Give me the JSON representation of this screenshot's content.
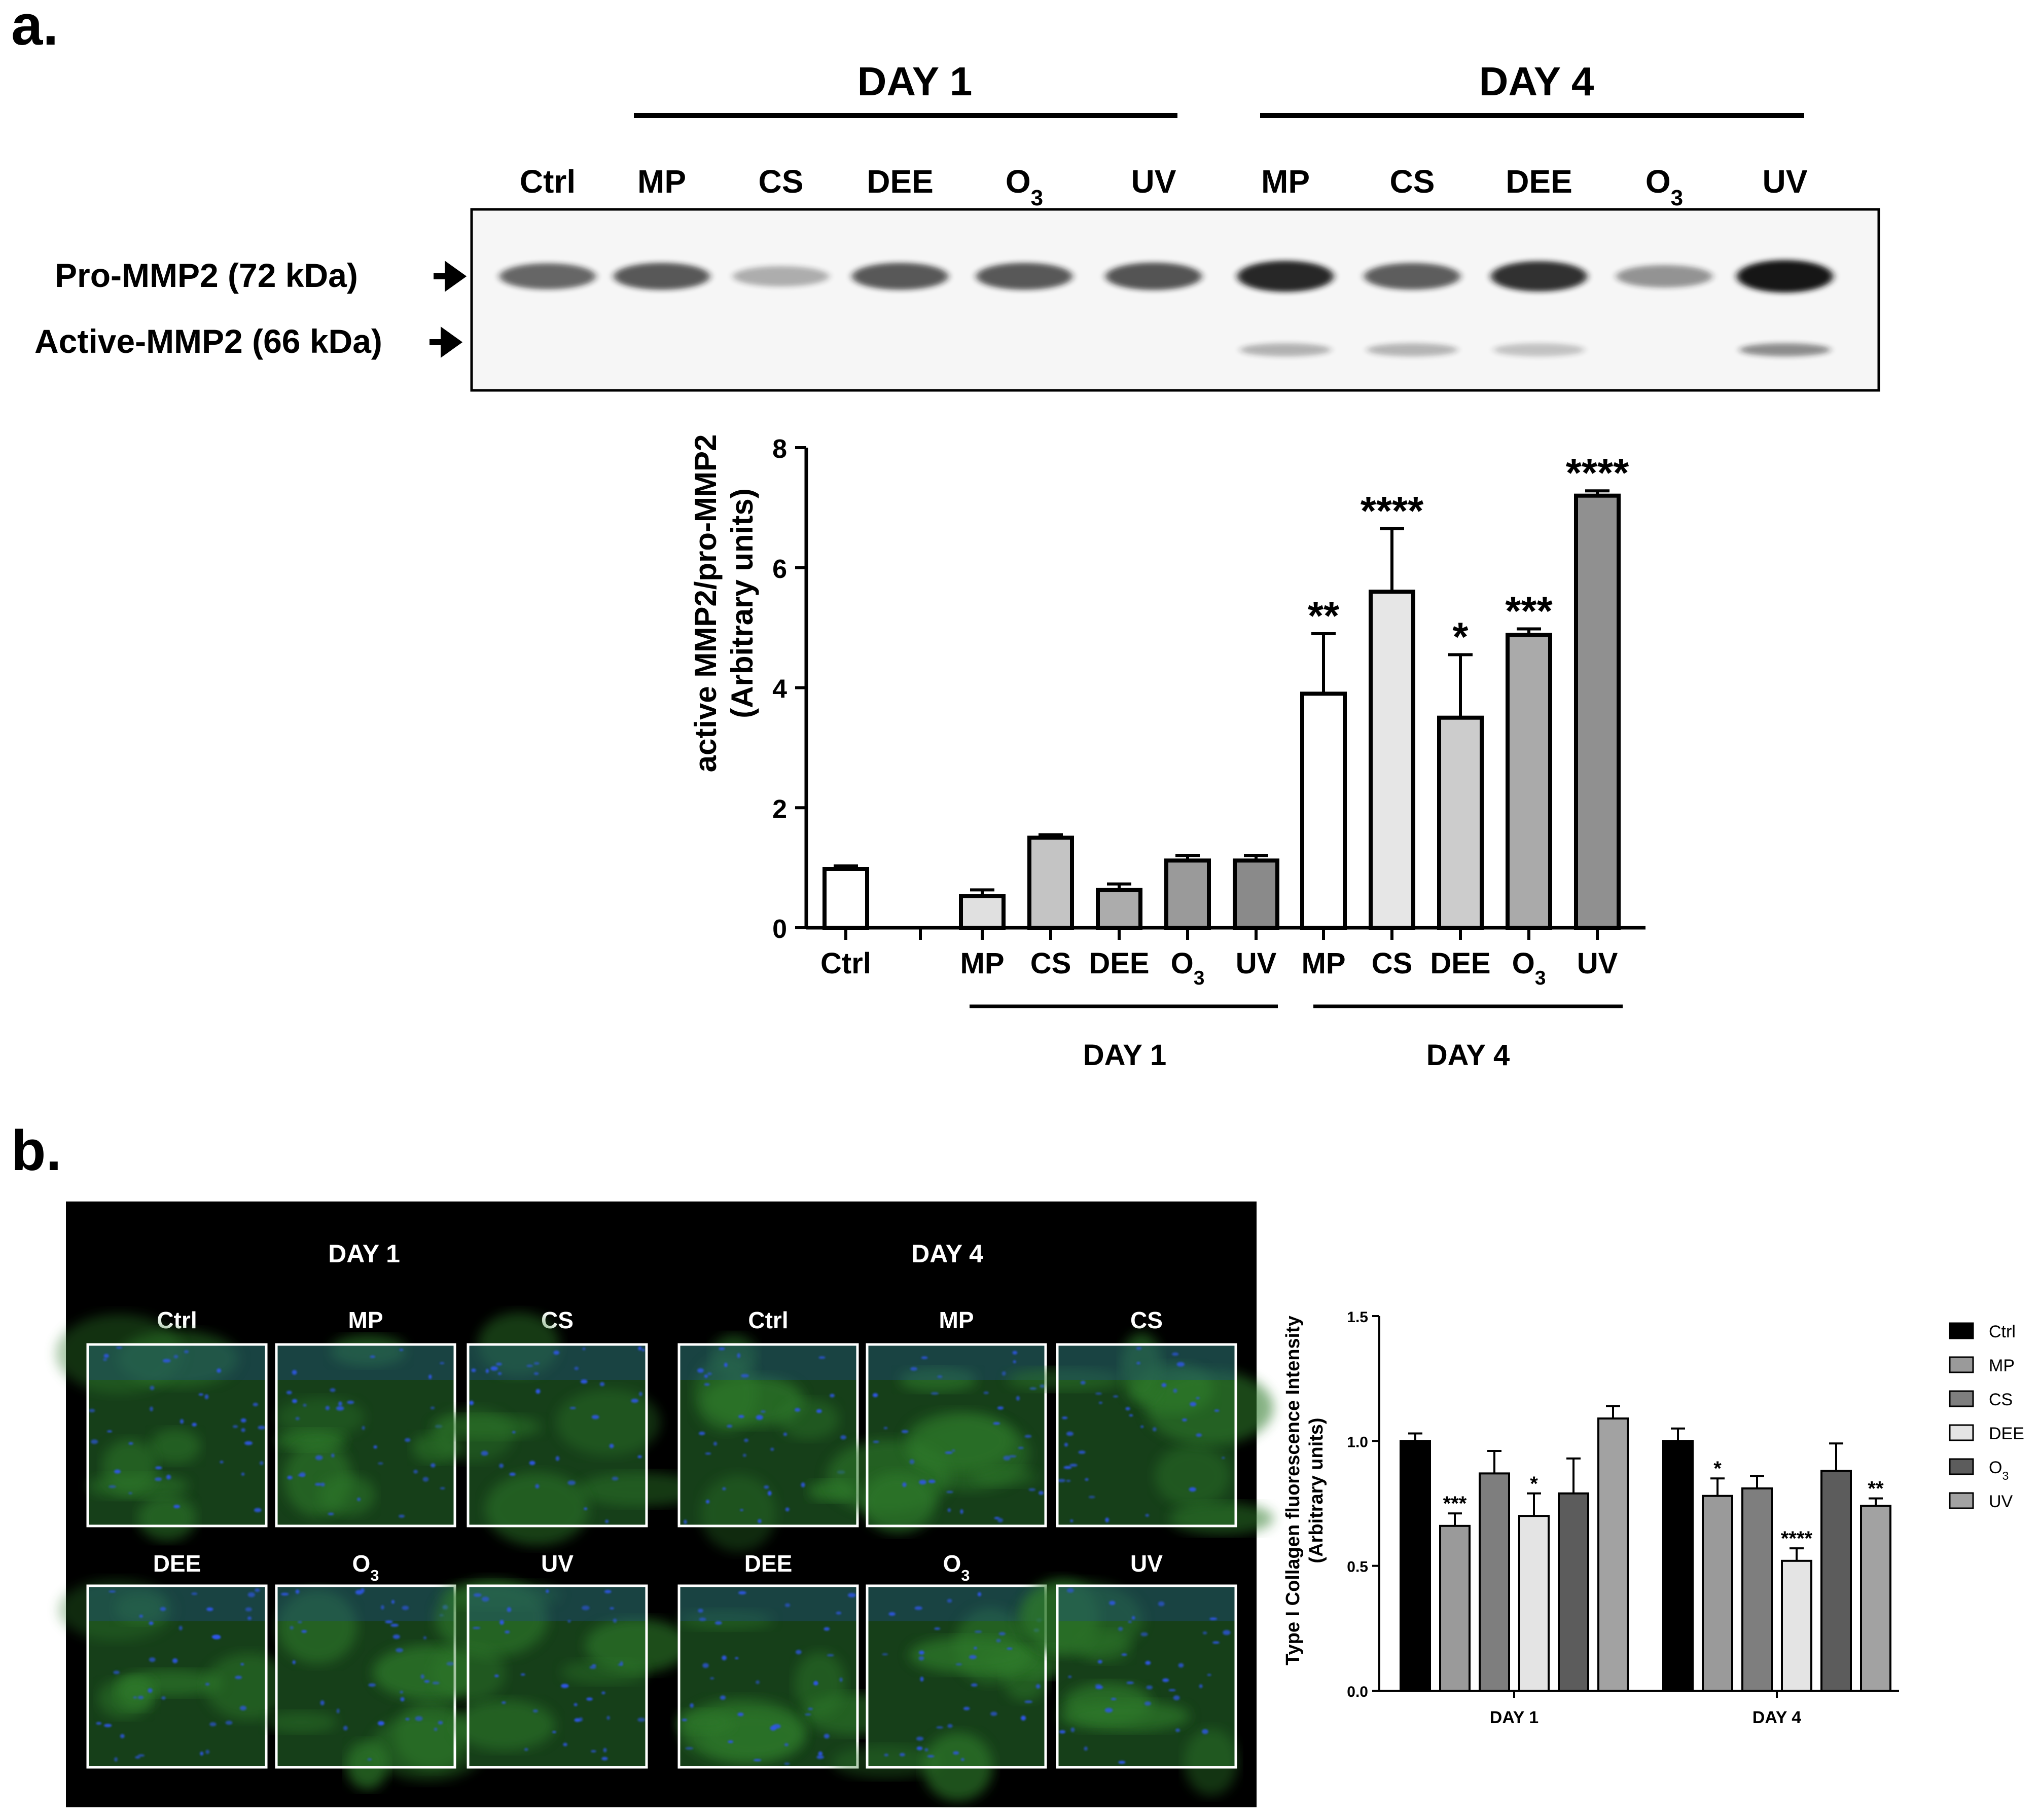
{
  "panel_a": {
    "label": "a.",
    "blot": {
      "group_labels": [
        "DAY 1",
        "DAY 4"
      ],
      "lanes": [
        {
          "label": "Ctrl",
          "sub": ""
        },
        {
          "label": "MP",
          "sub": ""
        },
        {
          "label": "CS",
          "sub": ""
        },
        {
          "label": "DEE",
          "sub": ""
        },
        {
          "label": "O",
          "sub": "3"
        },
        {
          "label": "UV",
          "sub": ""
        },
        {
          "label": "MP",
          "sub": ""
        },
        {
          "label": "CS",
          "sub": ""
        },
        {
          "label": "DEE",
          "sub": ""
        },
        {
          "label": "O",
          "sub": "3"
        },
        {
          "label": "UV",
          "sub": ""
        }
      ],
      "band_labels": [
        "Pro-MMP2 (72 kDa)",
        "Active-MMP2 (66 kDa)"
      ],
      "pro_band_intensity": [
        0.55,
        0.62,
        0.15,
        0.62,
        0.62,
        0.65,
        0.9,
        0.6,
        0.85,
        0.3,
        1.0
      ],
      "active_band_intensity": [
        0,
        0,
        0,
        0,
        0,
        0,
        0.18,
        0.16,
        0.1,
        0,
        0.38
      ]
    }
  },
  "chart_data": [
    {
      "type": "bar",
      "ylabel_lines": [
        "active MMP2/pro-MMP2",
        "(Arbitrary units)"
      ],
      "xlabel": "",
      "ylim": [
        0,
        8
      ],
      "yticks": [
        "0",
        "2",
        "4",
        "6",
        "8"
      ],
      "categories": [
        {
          "label": "Ctrl",
          "sub": ""
        },
        {
          "label": "MP",
          "sub": ""
        },
        {
          "label": "CS",
          "sub": ""
        },
        {
          "label": "DEE",
          "sub": ""
        },
        {
          "label": "O",
          "sub": "3"
        },
        {
          "label": "UV",
          "sub": ""
        },
        {
          "label": "MP",
          "sub": ""
        },
        {
          "label": "CS",
          "sub": ""
        },
        {
          "label": "DEE",
          "sub": ""
        },
        {
          "label": "O",
          "sub": "3"
        },
        {
          "label": "UV",
          "sub": ""
        }
      ],
      "values": [
        0.98,
        0.53,
        1.5,
        0.63,
        1.12,
        1.12,
        3.9,
        5.6,
        3.5,
        4.88,
        7.2
      ],
      "errors": [
        0.05,
        0.1,
        0.05,
        0.1,
        0.08,
        0.08,
        1.0,
        1.05,
        1.05,
        0.1,
        0.08
      ],
      "significance": [
        "",
        "",
        "",
        "",
        "",
        "",
        "**",
        "****",
        "*",
        "***",
        "****"
      ],
      "bar_colors": [
        "#ffffff",
        "#e0e0e0",
        "#c4c4c4",
        "#acacac",
        "#9a9a9a",
        "#8a8a8a",
        "#ffffff",
        "#e6e6e6",
        "#cccccc",
        "#aaaaaa",
        "#909090"
      ],
      "group_labels": [
        "DAY 1",
        "DAY 4"
      ],
      "grid": false
    },
    {
      "type": "bar",
      "ylabel_lines": [
        "Type I Collagen fluorescence Intensity",
        "(Arbitrary units)"
      ],
      "xlabel": "",
      "ylim": [
        0,
        1.5
      ],
      "yticks": [
        "0.0",
        "0.5",
        "1.0",
        "1.5"
      ],
      "categories": [
        "DAY 1",
        "DAY 4"
      ],
      "legend_position": "right",
      "series": [
        {
          "name": "Ctrl",
          "sub": "",
          "color": "#000000",
          "values": [
            1.0,
            1.0
          ],
          "errors": [
            0.03,
            0.05
          ],
          "significance": [
            "",
            ""
          ]
        },
        {
          "name": "MP",
          "sub": "",
          "color": "#9a9a9a",
          "values": [
            0.66,
            0.78
          ],
          "errors": [
            0.05,
            0.07
          ],
          "significance": [
            "***",
            "*"
          ]
        },
        {
          "name": "CS",
          "sub": "",
          "color": "#7e7e7e",
          "values": [
            0.87,
            0.81
          ],
          "errors": [
            0.09,
            0.05
          ],
          "significance": [
            "",
            ""
          ]
        },
        {
          "name": "DEE",
          "sub": "",
          "color": "#e4e4e4",
          "values": [
            0.7,
            0.52
          ],
          "errors": [
            0.09,
            0.05
          ],
          "significance": [
            "*",
            "****"
          ]
        },
        {
          "name": "O",
          "sub": "3",
          "color": "#5c5c5c",
          "values": [
            0.79,
            0.88
          ],
          "errors": [
            0.14,
            0.11
          ],
          "significance": [
            "",
            ""
          ]
        },
        {
          "name": "UV",
          "sub": "",
          "color": "#a2a2a2",
          "values": [
            1.09,
            0.74
          ],
          "errors": [
            0.05,
            0.03
          ],
          "significance": [
            "",
            "**"
          ]
        }
      ]
    }
  ],
  "panel_b": {
    "label": "b.",
    "micrograph": {
      "group_labels": [
        "DAY 1",
        "DAY 4"
      ],
      "tile_labels_row1": [
        {
          "label": "Ctrl",
          "sub": ""
        },
        {
          "label": "MP",
          "sub": ""
        },
        {
          "label": "CS",
          "sub": ""
        }
      ],
      "tile_labels_row2": [
        {
          "label": "DEE",
          "sub": ""
        },
        {
          "label": "O",
          "sub": "3"
        },
        {
          "label": "UV",
          "sub": ""
        }
      ]
    }
  },
  "colors": {
    "tissue_green": "#2f7a2a",
    "nuclei_blue": "#2f57e8",
    "blot_band": "#141414"
  }
}
